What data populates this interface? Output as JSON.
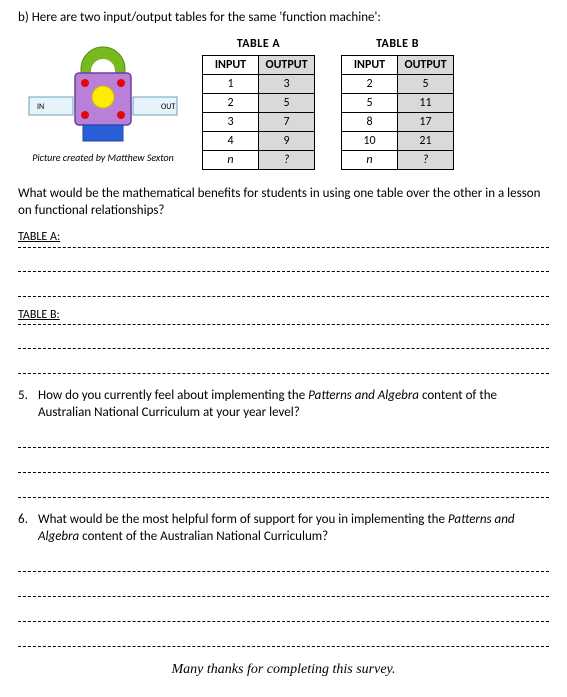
{
  "intro": "b) Here are two input/output tables for the same 'function machine':",
  "machine": {
    "caption": "Picture created by Matthew Sexton",
    "in_label": "IN",
    "out_label": "OUT",
    "colors": {
      "arch": "#79b81f",
      "body": "#b980d8",
      "body_stroke": "#6b3fa0",
      "yellow": "#ffed00",
      "red": "#e30613",
      "base": "#2b5fd9",
      "slot_fill": "#e6f4fa",
      "slot_stroke": "#6aa0b8"
    }
  },
  "tableA": {
    "title": "TABLE A",
    "headers": [
      "INPUT",
      "OUTPUT"
    ],
    "rows": [
      [
        "1",
        "3"
      ],
      [
        "2",
        "5"
      ],
      [
        "3",
        "7"
      ],
      [
        "4",
        "9"
      ],
      [
        "n",
        "?"
      ]
    ],
    "italicLast": true
  },
  "tableB": {
    "title": "TABLE B",
    "headers": [
      "INPUT",
      "OUTPUT"
    ],
    "rows": [
      [
        "2",
        "5"
      ],
      [
        "5",
        "11"
      ],
      [
        "8",
        "17"
      ],
      [
        "10",
        "21"
      ],
      [
        "n",
        "?"
      ]
    ],
    "italicLast": true
  },
  "question_main": "What would be the mathematical benefits for students in using one table over the other in a lesson on functional relationships?",
  "labelA": "TABLE A:",
  "labelB": "TABLE B:",
  "blank_lines_A": 2,
  "blank_lines_B": 2,
  "q5": {
    "num": "5.",
    "text_pre": "How do you currently feel about implementing the ",
    "text_italic": "Patterns and Algebra",
    "text_post": " content of the Australian National Curriculum at your year level?",
    "blank_lines": 3
  },
  "q6": {
    "num": "6.",
    "text_pre": "What would be the most helpful form of support for you in implementing the ",
    "text_italic": "Patterns and Algebra",
    "text_post": " content of the Australian National Curriculum?",
    "blank_lines": 4
  },
  "thanks": "Many thanks for completing this survey."
}
